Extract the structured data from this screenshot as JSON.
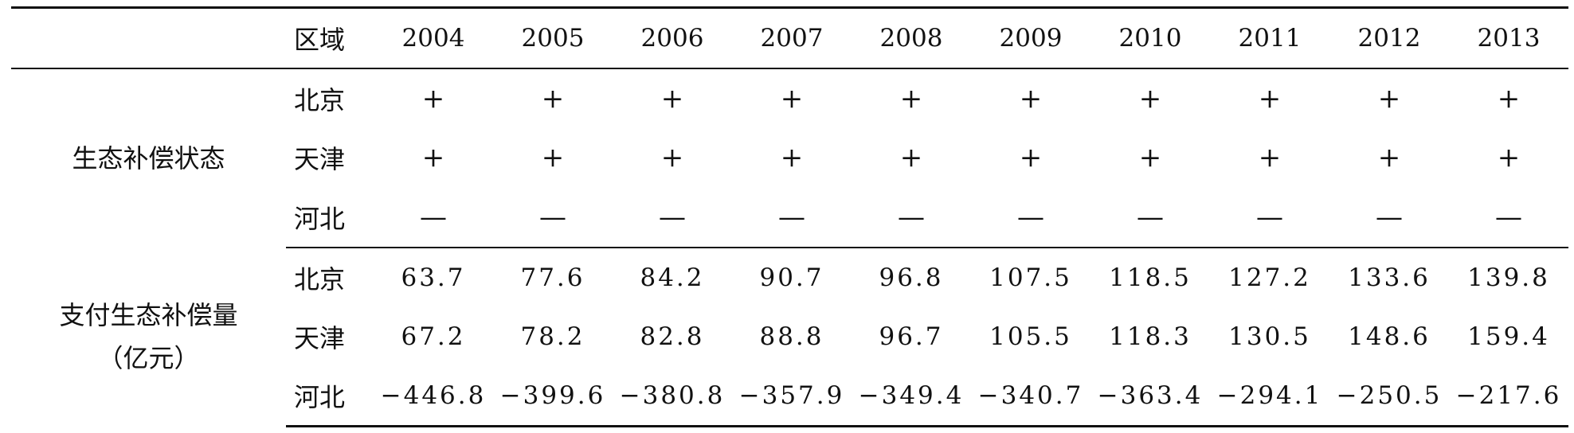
{
  "table": {
    "header": {
      "region_label": "区域",
      "years": [
        "2004",
        "2005",
        "2006",
        "2007",
        "2008",
        "2009",
        "2010",
        "2011",
        "2012",
        "2013"
      ]
    },
    "status_group": {
      "label": "生态补偿状态",
      "rows": [
        {
          "region": "北京",
          "values": [
            "+",
            "+",
            "+",
            "+",
            "+",
            "+",
            "+",
            "+",
            "+",
            "+"
          ]
        },
        {
          "region": "天津",
          "values": [
            "+",
            "+",
            "+",
            "+",
            "+",
            "+",
            "+",
            "+",
            "+",
            "+"
          ]
        },
        {
          "region": "河北",
          "values": [
            "—",
            "—",
            "—",
            "—",
            "—",
            "—",
            "—",
            "—",
            "—",
            "—"
          ]
        }
      ]
    },
    "payment_group": {
      "label_line1": "支付生态补偿量",
      "label_line2": "（亿元）",
      "rows": [
        {
          "region": "北京",
          "values": [
            "63.7",
            "77.6",
            "84.2",
            "90.7",
            "96.8",
            "107.5",
            "118.5",
            "127.2",
            "133.6",
            "139.8"
          ]
        },
        {
          "region": "天津",
          "values": [
            "67.2",
            "78.2",
            "82.8",
            "88.8",
            "96.7",
            "105.5",
            "118.3",
            "130.5",
            "148.6",
            "159.4"
          ]
        },
        {
          "region": "河北",
          "values": [
            "−446.8",
            "−399.6",
            "−380.8",
            "−357.9",
            "−349.4",
            "−340.7",
            "−363.4",
            "−294.1",
            "−250.5",
            "−217.6"
          ]
        }
      ]
    }
  }
}
